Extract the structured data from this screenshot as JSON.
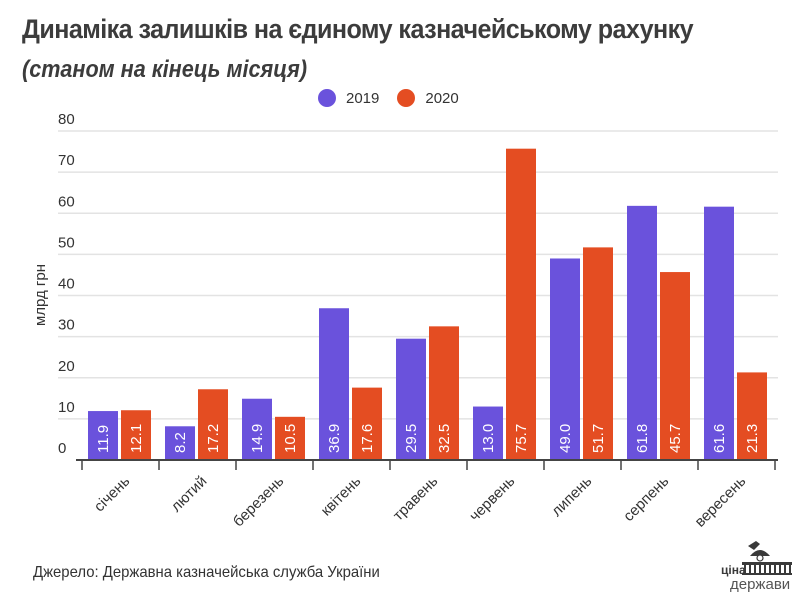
{
  "title": "Динаміка залишків на єдиному казначейському рахунку",
  "subtitle": "(станом на кінець місяця)",
  "source": "Джерело: Державна казначейська служба України",
  "logo": {
    "line1": "ціна",
    "line2": "держави"
  },
  "colors": {
    "2019": "#6a52dc",
    "2020": "#e44d22",
    "grid": "#e3e3e3",
    "axis": "#444444"
  },
  "chart_data": {
    "type": "bar",
    "title": "Динаміка залишків на єдиному казначейському рахунку",
    "subtitle": "(станом на кінець місяця)",
    "xlabel": "",
    "ylabel": "млрд грн",
    "ylim": [
      0,
      80
    ],
    "yticks": [
      0,
      10,
      20,
      30,
      40,
      50,
      60,
      70,
      80
    ],
    "grid": true,
    "legend_position": "top-center",
    "categories": [
      "січень",
      "лютий",
      "березень",
      "квітень",
      "травень",
      "червень",
      "липень",
      "серпень",
      "вересень"
    ],
    "series": [
      {
        "name": "2019",
        "values": [
          11.9,
          8.2,
          14.9,
          36.9,
          29.5,
          13.0,
          49.0,
          61.8,
          61.6
        ],
        "labels": [
          "11.9",
          "8.2",
          "14.9",
          "36.9",
          "29.5",
          "13.0",
          "49.0",
          "61.8",
          "61.6"
        ]
      },
      {
        "name": "2020",
        "values": [
          12.1,
          17.2,
          10.5,
          17.6,
          32.5,
          75.7,
          51.7,
          45.7,
          21.3
        ],
        "labels": [
          "12.1",
          "17.2",
          "10.5",
          "17.6",
          "32.5",
          "75.7",
          "51.7",
          "45.7",
          "21.3"
        ]
      }
    ]
  }
}
